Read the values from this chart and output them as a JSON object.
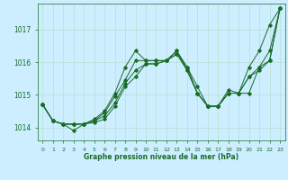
{
  "xlabel": "Graphe pression niveau de la mer (hPa)",
  "background_color": "#cceeff",
  "grid_color": "#b8ddd0",
  "line_color": "#1a6b2a",
  "x": [
    0,
    1,
    2,
    3,
    4,
    5,
    6,
    7,
    8,
    9,
    10,
    11,
    12,
    13,
    14,
    15,
    16,
    17,
    18,
    19,
    20,
    21,
    22,
    23
  ],
  "series": [
    [
      1014.7,
      1014.2,
      1014.1,
      1014.1,
      1014.1,
      1014.25,
      1014.5,
      1015.05,
      1015.85,
      1016.35,
      1016.05,
      1016.05,
      1016.05,
      1016.35,
      1015.85,
      1015.25,
      1014.65,
      1014.65,
      1015.15,
      1015.05,
      1015.85,
      1016.35,
      1017.15,
      1017.65
    ],
    [
      1014.7,
      1014.2,
      1014.1,
      1013.9,
      1014.1,
      1014.15,
      1014.25,
      1014.65,
      1015.25,
      1015.55,
      1015.95,
      1015.95,
      1016.05,
      1016.35,
      1015.75,
      1015.05,
      1014.65,
      1014.65,
      1015.05,
      1015.05,
      1015.05,
      1015.85,
      1016.05,
      1017.65
    ],
    [
      1014.7,
      1014.2,
      1014.1,
      1014.1,
      1014.1,
      1014.2,
      1014.35,
      1014.75,
      1015.35,
      1015.75,
      1015.95,
      1015.95,
      1016.05,
      1016.25,
      1015.75,
      1015.05,
      1014.65,
      1014.65,
      1015.05,
      1015.05,
      1015.55,
      1015.75,
      1016.05,
      1017.65
    ],
    [
      1014.7,
      1014.2,
      1014.1,
      1014.1,
      1014.1,
      1014.2,
      1014.45,
      1014.95,
      1015.45,
      1016.05,
      1016.05,
      1016.05,
      1016.05,
      1016.25,
      1015.85,
      1015.05,
      1014.65,
      1014.65,
      1015.05,
      1015.05,
      1015.55,
      1015.85,
      1016.35,
      1017.65
    ]
  ],
  "ylim": [
    1013.6,
    1017.8
  ],
  "yticks": [
    1014,
    1015,
    1016,
    1017
  ],
  "xticks": [
    0,
    1,
    2,
    3,
    4,
    5,
    6,
    7,
    8,
    9,
    10,
    11,
    12,
    13,
    14,
    15,
    16,
    17,
    18,
    19,
    20,
    21,
    22,
    23
  ],
  "figsize": [
    3.2,
    2.0
  ],
  "dpi": 100
}
